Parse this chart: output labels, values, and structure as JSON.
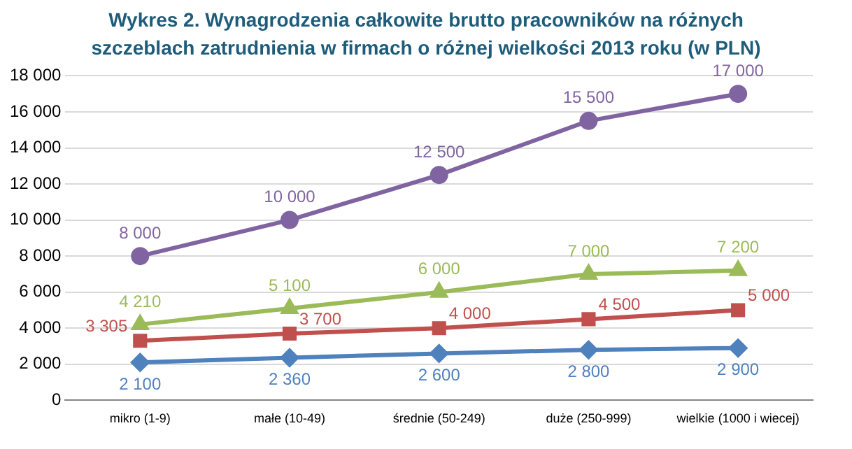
{
  "chart_data": {
    "type": "line",
    "title": "Wykres 2. Wynagrodzenia całkowite brutto pracowników na różnych szczeblach zatrudnienia w firmach o różnej wielkości 2013 roku (w PLN)",
    "categories": [
      "mikro (1-9)",
      "małe (10-49)",
      "średnie (50-249)",
      "duże (250-999)",
      "wielkie (1000 i wiecej)"
    ],
    "series": [
      {
        "color": "#4f81bd",
        "marker": "diamond",
        "values": [
          2100,
          2360,
          2600,
          2800,
          2900
        ],
        "value_labels": [
          "2 100",
          "2 360",
          "2 600",
          "2 800",
          "2 900"
        ]
      },
      {
        "color": "#c0504d",
        "marker": "square",
        "values": [
          3305,
          3700,
          4000,
          4500,
          5000
        ],
        "value_labels": [
          "3 305",
          "3 700",
          "4 000",
          "4 500",
          "5 000"
        ]
      },
      {
        "color": "#9bbb59",
        "marker": "triangle",
        "values": [
          4210,
          5100,
          6000,
          7000,
          7200
        ],
        "value_labels": [
          "4 210",
          "5 100",
          "6 000",
          "7 000",
          "7 200"
        ]
      },
      {
        "color": "#8064a2",
        "marker": "circle",
        "values": [
          8000,
          10000,
          12500,
          15500,
          17000
        ],
        "value_labels": [
          "8 000",
          "10 000",
          "12 500",
          "15 500",
          "17 000"
        ]
      }
    ],
    "ylim": [
      0,
      18000
    ],
    "yticks": [
      {
        "value": 0,
        "label": "0"
      },
      {
        "value": 2000,
        "label": "2 000"
      },
      {
        "value": 4000,
        "label": "4 000"
      },
      {
        "value": 6000,
        "label": "6 000"
      },
      {
        "value": 8000,
        "label": "8 000"
      },
      {
        "value": 10000,
        "label": "10 000"
      },
      {
        "value": 12000,
        "label": "12 000"
      },
      {
        "value": 14000,
        "label": "14 000"
      },
      {
        "value": 16000,
        "label": "16 000"
      },
      {
        "value": 18000,
        "label": "18 000"
      }
    ],
    "grid": "y",
    "legend": false,
    "line_style": "solid"
  }
}
